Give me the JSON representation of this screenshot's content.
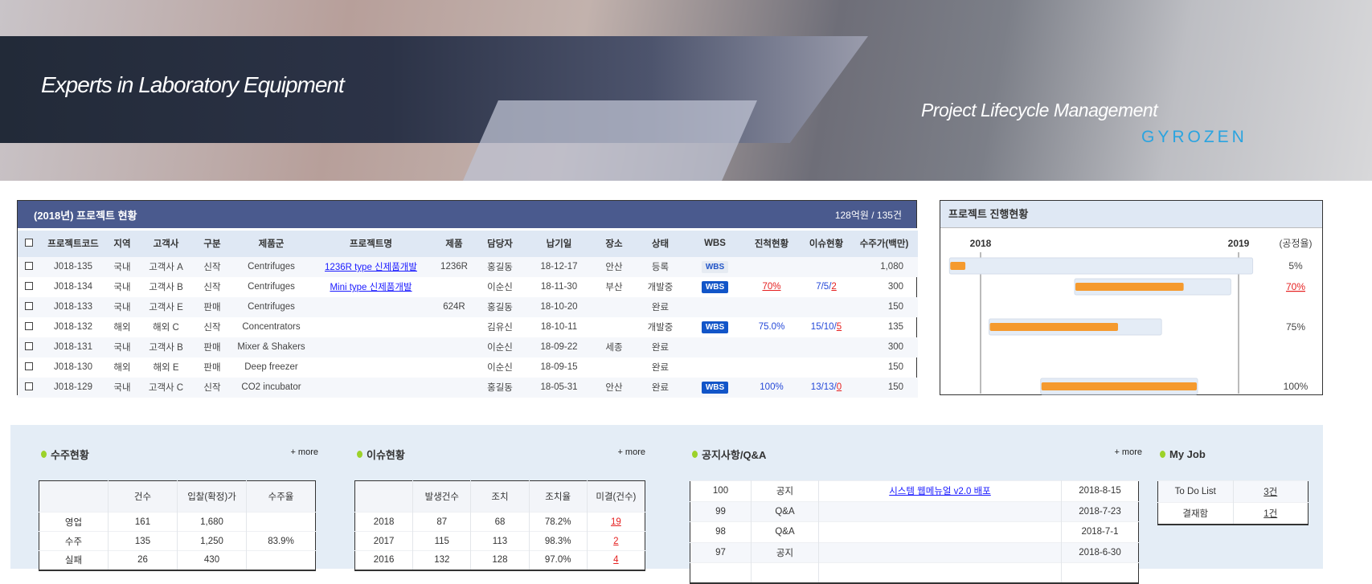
{
  "banner": {
    "slogan": "Experts in Laboratory Equipment",
    "subtitle": "Project Lifecycle Management",
    "logo": "GYROZEN"
  },
  "projects": {
    "title": "(2018년) 프로젝트 현황",
    "summary": "128억원 / 135건",
    "columns": [
      "프로젝트코드",
      "지역",
      "고객사",
      "구분",
      "제품군",
      "프로젝트명",
      "제품",
      "담당자",
      "납기일",
      "장소",
      "상태",
      "WBS",
      "진척현황",
      "이슈현황",
      "수주가(백만)"
    ],
    "rows": [
      {
        "code": "J018-135",
        "region": "국내",
        "customer": "고객사 A",
        "type": "신작",
        "group": "Centrifuges",
        "name": "1236R type 신제품개발",
        "product": "1236R",
        "manager": "홍길동",
        "due": "18-12-17",
        "place": "안산",
        "status": "등록",
        "wbs": "WBS",
        "wbs_active": false,
        "progress": "",
        "issues": "",
        "issue_open": "",
        "amount": "1,080"
      },
      {
        "code": "J018-134",
        "region": "국내",
        "customer": "고객사 B",
        "type": "신작",
        "group": "Centrifuges",
        "name": "Mini type 신제품개발",
        "product": "",
        "manager": "이순신",
        "due": "18-11-30",
        "place": "부산",
        "status": "개발중",
        "wbs": "WBS",
        "wbs_active": true,
        "progress": "70%",
        "progress_alert": true,
        "issues": "7/5/",
        "issue_open": "2",
        "amount": "300"
      },
      {
        "code": "J018-133",
        "region": "국내",
        "customer": "고객사 E",
        "type": "판매",
        "group": "Centrifuges",
        "name": "",
        "product": "624R",
        "manager": "홍길동",
        "due": "18-10-20",
        "place": "",
        "status": "완료",
        "wbs": "",
        "progress": "",
        "issues": "",
        "issue_open": "",
        "amount": "150"
      },
      {
        "code": "J018-132",
        "region": "해외",
        "customer": "해외 C",
        "type": "신작",
        "group": "Concentrators",
        "name": "",
        "product": "",
        "manager": "김유신",
        "due": "18-10-11",
        "place": "",
        "status": "개발중",
        "wbs": "WBS",
        "wbs_active": true,
        "progress": "75.0%",
        "issues": "15/10/",
        "issue_open": "5",
        "amount": "135"
      },
      {
        "code": "J018-131",
        "region": "국내",
        "customer": "고객사 B",
        "type": "판매",
        "group": "Mixer & Shakers",
        "name": "",
        "product": "",
        "manager": "이순신",
        "due": "18-09-22",
        "place": "세종",
        "status": "완료",
        "wbs": "",
        "progress": "",
        "issues": "",
        "issue_open": "",
        "amount": "300"
      },
      {
        "code": "J018-130",
        "region": "해외",
        "customer": "해외 E",
        "type": "판매",
        "group": "Deep freezer",
        "name": "",
        "product": "",
        "manager": "이순신",
        "due": "18-09-15",
        "place": "",
        "status": "완료",
        "wbs": "",
        "progress": "",
        "issues": "",
        "issue_open": "",
        "amount": "150"
      },
      {
        "code": "J018-129",
        "region": "국내",
        "customer": "고객사 C",
        "type": "신작",
        "group": "CO2 incubator",
        "name": "",
        "product": "",
        "manager": "홍길동",
        "due": "18-05-31",
        "place": "안산",
        "status": "완료",
        "wbs": "WBS",
        "wbs_active": true,
        "progress": "100%",
        "issues": "13/13/",
        "issue_open": "0",
        "amount": "150"
      }
    ]
  },
  "progress_panel": {
    "title": "프로젝트 진행현황",
    "year_start": "2018",
    "year_end": "2019",
    "rate_label": "(공정율)",
    "bars": [
      {
        "start": "2017-11-18",
        "end": "2019-01-21",
        "percent": 5,
        "label": "5%",
        "alert": false,
        "row": 0
      },
      {
        "start": "2018-05-14",
        "end": "2018-12-21",
        "percent": 70,
        "label": "70%",
        "alert": true,
        "row": 1
      },
      {
        "start": "2018-01-13",
        "end": "2018-09-14",
        "percent": 75,
        "label": "75%",
        "alert": false,
        "row": 3
      },
      {
        "start": "2018-03-27",
        "end": "2018-11-04",
        "percent": 100,
        "label": "100%",
        "alert": false,
        "row": 6
      }
    ],
    "colors": {
      "fill": "#f59a2e",
      "track": "#e4ecf6"
    }
  },
  "orders": {
    "title": "수주현황",
    "more": "+ more",
    "columns": [
      "",
      "건수",
      "입찰(확정)가",
      "수주율"
    ],
    "rows": [
      [
        "영업",
        "161",
        "1,680",
        ""
      ],
      [
        "수주",
        "135",
        "1,250",
        "83.9%"
      ],
      [
        "실패",
        "26",
        "430",
        ""
      ]
    ]
  },
  "issues": {
    "title": "이슈현황",
    "more": "+ more",
    "columns": [
      "",
      "발생건수",
      "조치",
      "조치율",
      "미결(건수)"
    ],
    "rows": [
      [
        "2018",
        "87",
        "68",
        "78.2%",
        "19"
      ],
      [
        "2017",
        "115",
        "113",
        "98.3%",
        "2"
      ],
      [
        "2016",
        "132",
        "128",
        "97.0%",
        "4"
      ]
    ]
  },
  "notices": {
    "title": "공지사항/Q&A",
    "more": "+ more",
    "rows": [
      [
        "100",
        "공지",
        "시스템 웹메뉴얼 v2.0 배포",
        "2018-8-15"
      ],
      [
        "99",
        "Q&A",
        "",
        "2018-7-23"
      ],
      [
        "98",
        "Q&A",
        "",
        "2018-7-1"
      ],
      [
        "97",
        "공지",
        "",
        "2018-6-30"
      ],
      [
        "",
        "",
        "",
        ""
      ]
    ]
  },
  "myjob": {
    "title": "My Job",
    "rows": [
      [
        "To Do List",
        "3건"
      ],
      [
        "결재함",
        "1건"
      ]
    ]
  }
}
